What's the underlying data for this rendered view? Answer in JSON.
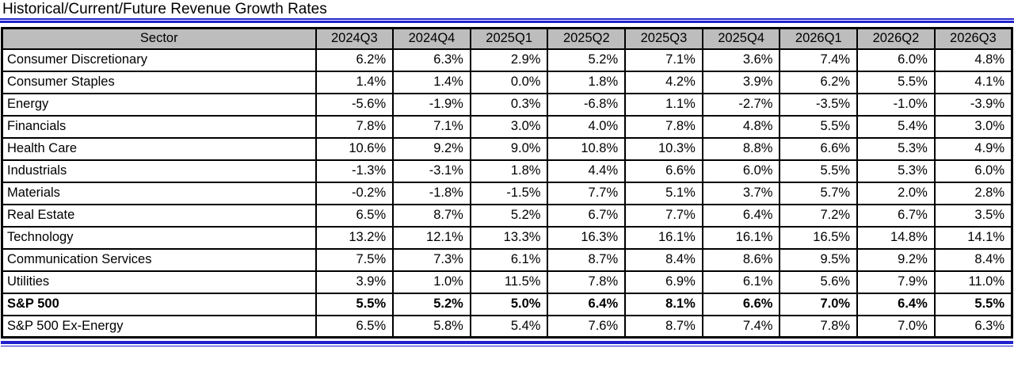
{
  "title": "Historical/Current/Future Revenue Growth Rates",
  "accent_color": "#2222cc",
  "header_bg": "#bdbdbd",
  "table": {
    "sector_header": "Sector",
    "columns": [
      "2024Q3",
      "2024Q4",
      "2025Q1",
      "2025Q2",
      "2025Q3",
      "2025Q4",
      "2026Q1",
      "2026Q2",
      "2026Q3"
    ],
    "rows": [
      {
        "sector": "Consumer Discretionary",
        "bold": false,
        "values": [
          "6.2%",
          "6.3%",
          "2.9%",
          "5.2%",
          "7.1%",
          "3.6%",
          "7.4%",
          "6.0%",
          "4.8%"
        ]
      },
      {
        "sector": "Consumer Staples",
        "bold": false,
        "values": [
          "1.4%",
          "1.4%",
          "0.0%",
          "1.8%",
          "4.2%",
          "3.9%",
          "6.2%",
          "5.5%",
          "4.1%"
        ]
      },
      {
        "sector": "Energy",
        "bold": false,
        "values": [
          "-5.6%",
          "-1.9%",
          "0.3%",
          "-6.8%",
          "1.1%",
          "-2.7%",
          "-3.5%",
          "-1.0%",
          "-3.9%"
        ]
      },
      {
        "sector": "Financials",
        "bold": false,
        "values": [
          "7.8%",
          "7.1%",
          "3.0%",
          "4.0%",
          "7.8%",
          "4.8%",
          "5.5%",
          "5.4%",
          "3.0%"
        ]
      },
      {
        "sector": "Health Care",
        "bold": false,
        "values": [
          "10.6%",
          "9.2%",
          "9.0%",
          "10.8%",
          "10.3%",
          "8.8%",
          "6.6%",
          "5.3%",
          "4.9%"
        ]
      },
      {
        "sector": "Industrials",
        "bold": false,
        "values": [
          "-1.3%",
          "-3.1%",
          "1.8%",
          "4.4%",
          "6.6%",
          "6.0%",
          "5.5%",
          "5.3%",
          "6.0%"
        ]
      },
      {
        "sector": "Materials",
        "bold": false,
        "values": [
          "-0.2%",
          "-1.8%",
          "-1.5%",
          "7.7%",
          "5.1%",
          "3.7%",
          "5.7%",
          "2.0%",
          "2.8%"
        ]
      },
      {
        "sector": "Real Estate",
        "bold": false,
        "values": [
          "6.5%",
          "8.7%",
          "5.2%",
          "6.7%",
          "7.7%",
          "6.4%",
          "7.2%",
          "6.7%",
          "3.5%"
        ]
      },
      {
        "sector": "Technology",
        "bold": false,
        "values": [
          "13.2%",
          "12.1%",
          "13.3%",
          "16.3%",
          "16.1%",
          "16.1%",
          "16.5%",
          "14.8%",
          "14.1%"
        ]
      },
      {
        "sector": "Communication Services",
        "bold": false,
        "values": [
          "7.5%",
          "7.3%",
          "6.1%",
          "8.7%",
          "8.4%",
          "8.6%",
          "9.5%",
          "9.2%",
          "8.4%"
        ]
      },
      {
        "sector": "Utilities",
        "bold": false,
        "values": [
          "3.9%",
          "1.0%",
          "11.5%",
          "7.8%",
          "6.9%",
          "6.1%",
          "5.6%",
          "7.9%",
          "11.0%"
        ]
      },
      {
        "sector": "S&P 500",
        "bold": true,
        "values": [
          "5.5%",
          "5.2%",
          "5.0%",
          "6.4%",
          "8.1%",
          "6.6%",
          "7.0%",
          "6.4%",
          "5.5%"
        ]
      },
      {
        "sector": "S&P 500 Ex-Energy",
        "bold": false,
        "values": [
          "6.5%",
          "5.8%",
          "5.4%",
          "7.6%",
          "8.7%",
          "7.4%",
          "7.8%",
          "7.0%",
          "6.3%"
        ]
      }
    ]
  },
  "chart_data": {
    "type": "table",
    "title": "Historical/Current/Future Revenue Growth Rates",
    "categories": [
      "2024Q3",
      "2024Q4",
      "2025Q1",
      "2025Q2",
      "2025Q3",
      "2025Q4",
      "2026Q1",
      "2026Q2",
      "2026Q3"
    ],
    "unit": "percent",
    "series": [
      {
        "name": "Consumer Discretionary",
        "values": [
          6.2,
          6.3,
          2.9,
          5.2,
          7.1,
          3.6,
          7.4,
          6.0,
          4.8
        ]
      },
      {
        "name": "Consumer Staples",
        "values": [
          1.4,
          1.4,
          0.0,
          1.8,
          4.2,
          3.9,
          6.2,
          5.5,
          4.1
        ]
      },
      {
        "name": "Energy",
        "values": [
          -5.6,
          -1.9,
          0.3,
          -6.8,
          1.1,
          -2.7,
          -3.5,
          -1.0,
          -3.9
        ]
      },
      {
        "name": "Financials",
        "values": [
          7.8,
          7.1,
          3.0,
          4.0,
          7.8,
          4.8,
          5.5,
          5.4,
          3.0
        ]
      },
      {
        "name": "Health Care",
        "values": [
          10.6,
          9.2,
          9.0,
          10.8,
          10.3,
          8.8,
          6.6,
          5.3,
          4.9
        ]
      },
      {
        "name": "Industrials",
        "values": [
          -1.3,
          -3.1,
          1.8,
          4.4,
          6.6,
          6.0,
          5.5,
          5.3,
          6.0
        ]
      },
      {
        "name": "Materials",
        "values": [
          -0.2,
          -1.8,
          -1.5,
          7.7,
          5.1,
          3.7,
          5.7,
          2.0,
          2.8
        ]
      },
      {
        "name": "Real Estate",
        "values": [
          6.5,
          8.7,
          5.2,
          6.7,
          7.7,
          6.4,
          7.2,
          6.7,
          3.5
        ]
      },
      {
        "name": "Technology",
        "values": [
          13.2,
          12.1,
          13.3,
          16.3,
          16.1,
          16.1,
          16.5,
          14.8,
          14.1
        ]
      },
      {
        "name": "Communication Services",
        "values": [
          7.5,
          7.3,
          6.1,
          8.7,
          8.4,
          8.6,
          9.5,
          9.2,
          8.4
        ]
      },
      {
        "name": "Utilities",
        "values": [
          3.9,
          1.0,
          11.5,
          7.8,
          6.9,
          6.1,
          5.6,
          7.9,
          11.0
        ]
      },
      {
        "name": "S&P 500",
        "values": [
          5.5,
          5.2,
          5.0,
          6.4,
          8.1,
          6.6,
          7.0,
          6.4,
          5.5
        ]
      },
      {
        "name": "S&P 500 Ex-Energy",
        "values": [
          6.5,
          5.8,
          5.4,
          7.6,
          8.7,
          7.4,
          7.8,
          7.0,
          6.3
        ]
      }
    ]
  }
}
